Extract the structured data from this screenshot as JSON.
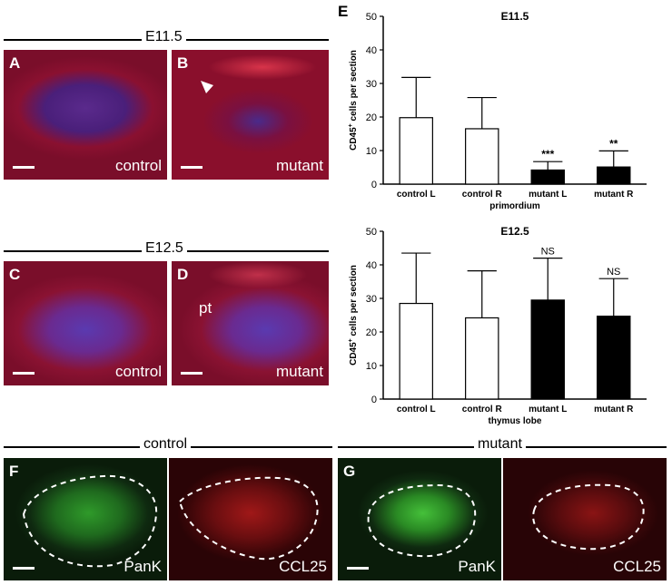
{
  "stages": {
    "e115": "E11.5",
    "e125": "E12.5",
    "control": "control",
    "mutant": "mutant"
  },
  "panels": {
    "A": {
      "letter": "A",
      "label": ""
    },
    "B": {
      "letter": "B",
      "label": "mutant"
    },
    "A_label": "control",
    "C": {
      "letter": "C",
      "label": "control"
    },
    "D": {
      "letter": "D",
      "label": "mutant",
      "pt": "pt"
    },
    "F": {
      "letter": "F",
      "left_label": "PanK",
      "right_label": "CCL25"
    },
    "G": {
      "letter": "G",
      "left_label": "PanK",
      "right_label": "CCL25"
    },
    "E": {
      "letter": "E"
    }
  },
  "colors": {
    "bar_open": "#ffffff",
    "bar_filled": "#000000",
    "tissue_red": "#8a1030",
    "tissue_blue": "#3a2a9a"
  },
  "chart_data": [
    {
      "type": "bar",
      "title": "E11.5",
      "xlabel": "primordium",
      "ylabel": "CD45+ cells per section",
      "categories": [
        "control L",
        "control R",
        "mutant L",
        "mutant R"
      ],
      "values": [
        19.8,
        16.5,
        4.2,
        5.1
      ],
      "errors": [
        12.0,
        9.3,
        2.5,
        4.8
      ],
      "fills": [
        "open",
        "open",
        "filled",
        "filled"
      ],
      "annotations": [
        "",
        "",
        "***",
        "**"
      ],
      "ylim": [
        0,
        50
      ],
      "yticks": [
        0,
        10,
        20,
        30,
        40,
        50
      ],
      "grid": false
    },
    {
      "type": "bar",
      "title": "E12.5",
      "xlabel": "thymus lobe",
      "ylabel": "CD45+ cells per section",
      "categories": [
        "control L",
        "control R",
        "mutant L",
        "mutant R"
      ],
      "values": [
        28.5,
        24.2,
        29.5,
        24.7
      ],
      "errors": [
        15.0,
        14.0,
        12.5,
        11.2
      ],
      "fills": [
        "open",
        "open",
        "filled",
        "filled"
      ],
      "annotations": [
        "",
        "",
        "NS",
        "NS"
      ],
      "ylim": [
        0,
        50
      ],
      "yticks": [
        0,
        10,
        20,
        30,
        40,
        50
      ],
      "grid": false
    }
  ]
}
